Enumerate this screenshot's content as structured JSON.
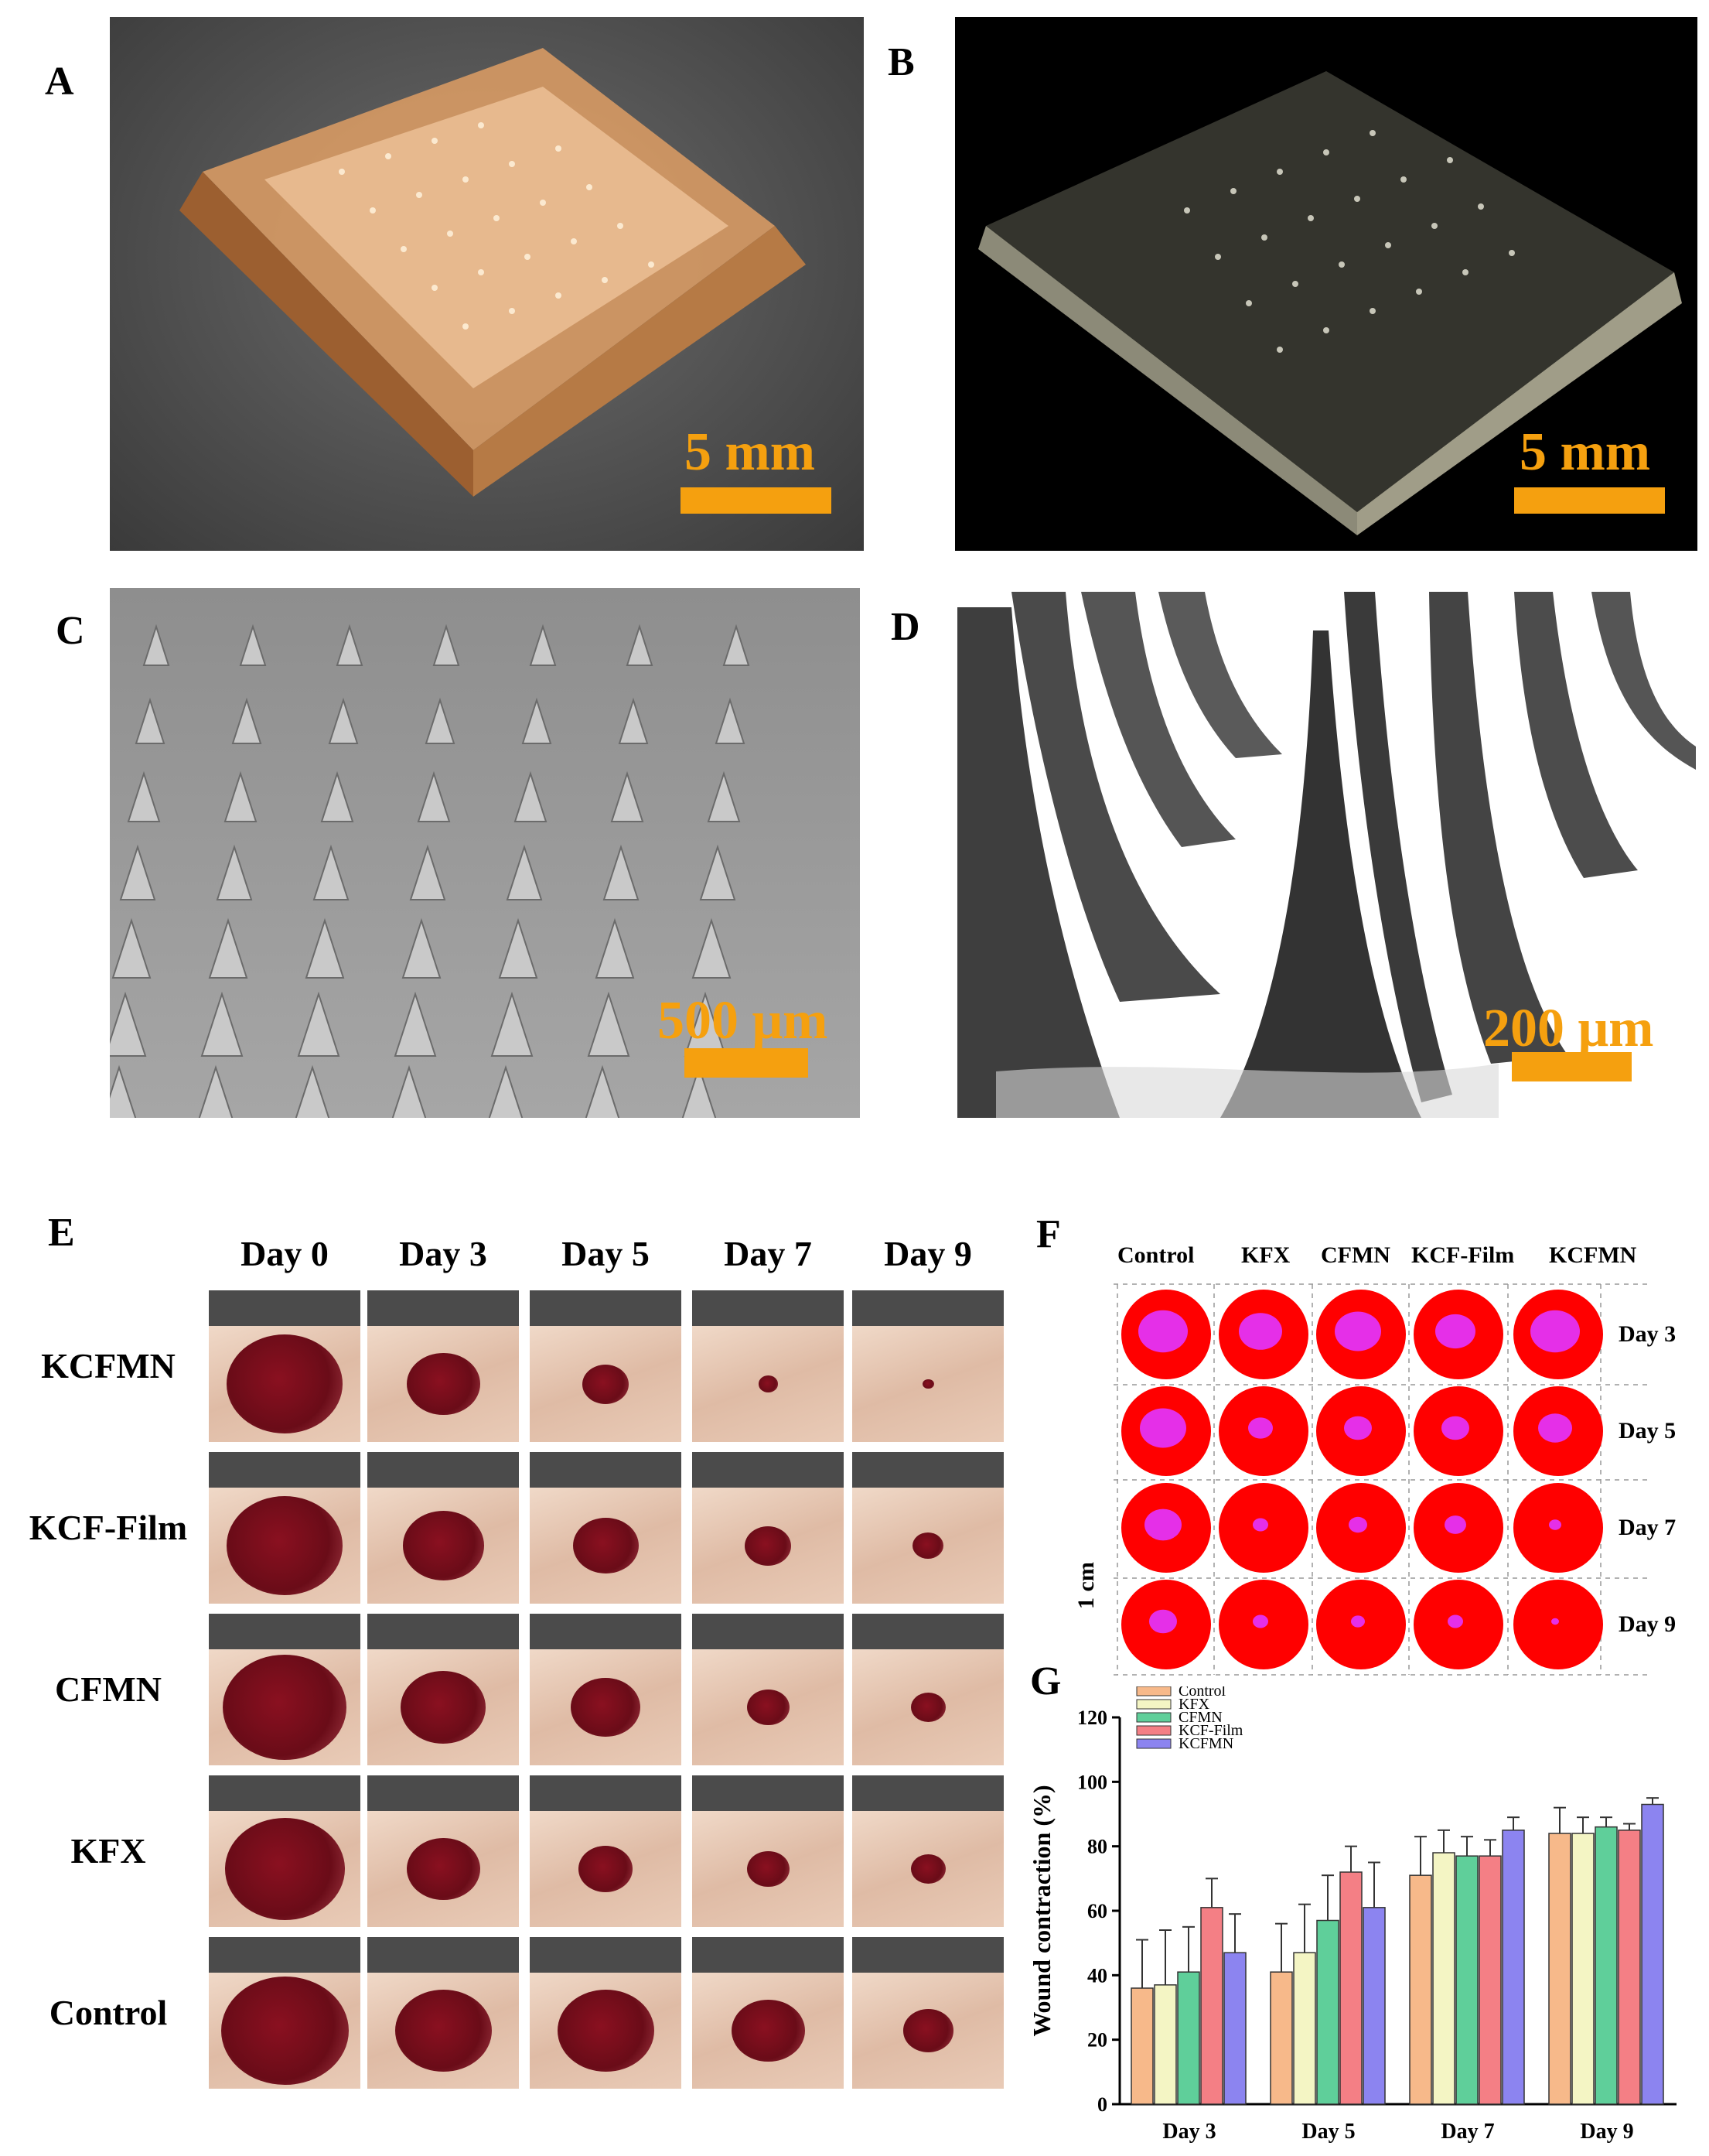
{
  "panels": {
    "A": {
      "letter": "A",
      "scale": "5 mm"
    },
    "B": {
      "letter": "B",
      "scale": "5 mm"
    },
    "C": {
      "letter": "C",
      "scale": "500 μm"
    },
    "D": {
      "letter": "D",
      "scale": "200 μm"
    },
    "E": {
      "letter": "E",
      "days": [
        "Day 0",
        "Day 3",
        "Day 5",
        "Day 7",
        "Day 9"
      ],
      "rows": [
        "KCFMN",
        "KCF-Film",
        "CFMN",
        "KFX",
        "Control"
      ]
    },
    "F": {
      "letter": "F",
      "columns": [
        "Control",
        "KFX",
        "CFMN",
        "KCF-Film",
        "KCFMN"
      ],
      "days": [
        "Day 3",
        "Day 5",
        "Day 7",
        "Day 9"
      ],
      "scale": "1 cm"
    },
    "G": {
      "letter": "G"
    }
  },
  "chart_data": {
    "type": "bar",
    "ylabel": "Wound contraction (%)",
    "xlabel": "",
    "ylim": [
      0,
      120
    ],
    "yticks": [
      0,
      20,
      40,
      60,
      80,
      100,
      120
    ],
    "categories": [
      "Day 3",
      "Day 5",
      "Day 7",
      "Day 9"
    ],
    "legend_position": "top-left",
    "series": [
      {
        "name": "Control",
        "color": "#f7b98a",
        "values": [
          36,
          41,
          71,
          84
        ],
        "errors": [
          15,
          15,
          12,
          8
        ]
      },
      {
        "name": "KFX",
        "color": "#f4f5c4",
        "values": [
          37,
          47,
          78,
          84
        ],
        "errors": [
          17,
          15,
          7,
          5
        ]
      },
      {
        "name": "CFMN",
        "color": "#5fcf9a",
        "values": [
          41,
          57,
          77,
          86
        ],
        "errors": [
          14,
          14,
          6,
          3
        ]
      },
      {
        "name": "KCF-Film",
        "color": "#f47f85",
        "values": [
          61,
          72,
          77,
          85
        ],
        "errors": [
          9,
          8,
          5,
          2
        ]
      },
      {
        "name": "KCFMN",
        "color": "#8c84f0",
        "values": [
          47,
          61,
          85,
          93
        ],
        "errors": [
          12,
          14,
          4,
          2
        ]
      }
    ]
  }
}
